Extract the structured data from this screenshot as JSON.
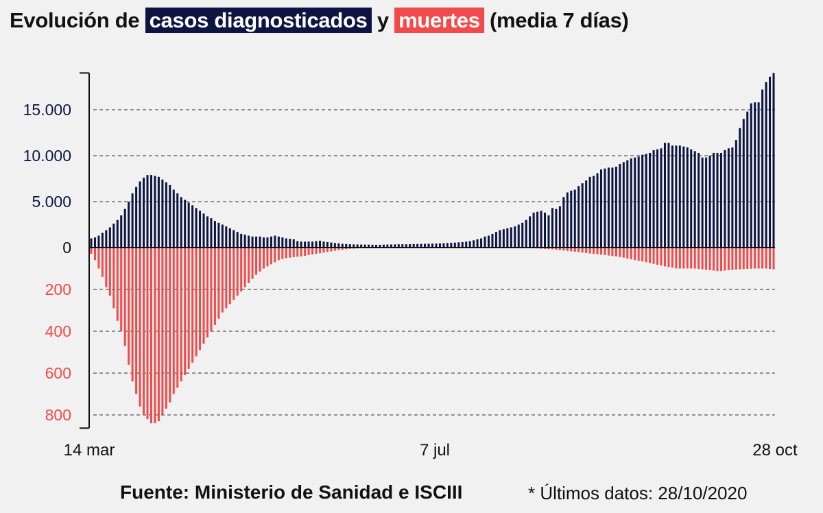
{
  "title": {
    "prefix": "Evolución de",
    "cases_label": "casos diagnosticados",
    "connector": "y",
    "deaths_label": "muertes",
    "suffix": "(media 7 días)"
  },
  "footer": {
    "source": "Fuente: Ministerio de Sanidad e ISCIII",
    "last_data": "* Últimos datos: 28/10/2020"
  },
  "colors": {
    "cases": "#0d1442",
    "deaths": "#f24a4a",
    "background": "#f1f1f1",
    "highlight_text": "#ffffff"
  },
  "chart_data": {
    "type": "bar",
    "title": "Evolución de casos diagnosticados y muertes (media 7 días)",
    "x_tick_labels": [
      "14 mar",
      "7 jul",
      "28 oct"
    ],
    "cases_axis": {
      "ylim": [
        0,
        19000
      ],
      "ticks": [
        0,
        5000,
        10000,
        15000
      ],
      "tick_labels": [
        "0",
        "5.000",
        "10.000",
        "15.000"
      ]
    },
    "deaths_axis": {
      "ylim": [
        0,
        850
      ],
      "ticks": [
        200,
        400,
        600,
        800
      ],
      "tick_labels": [
        "200",
        "400",
        "600",
        "800"
      ]
    },
    "grid": true,
    "series": [
      {
        "name": "casos diagnosticados",
        "values": [
          1000,
          1100,
          1300,
          1600,
          1900,
          2200,
          2600,
          3000,
          3500,
          4200,
          5000,
          5900,
          6600,
          7200,
          7600,
          7900,
          7900,
          7800,
          7700,
          7400,
          7100,
          6800,
          6300,
          5900,
          5500,
          5200,
          4900,
          4600,
          4300,
          4000,
          3700,
          3400,
          3200,
          2900,
          2700,
          2500,
          2300,
          2100,
          1900,
          1700,
          1500,
          1400,
          1300,
          1200,
          1200,
          1200,
          1100,
          1100,
          1200,
          1300,
          1200,
          1100,
          1000,
          950,
          900,
          700,
          650,
          650,
          650,
          650,
          700,
          750,
          650,
          600,
          550,
          500,
          450,
          400,
          380,
          360,
          350,
          340,
          330,
          330,
          320,
          310,
          300,
          310,
          320,
          330,
          340,
          350,
          360,
          360,
          360,
          370,
          380,
          390,
          400,
          410,
          420,
          430,
          440,
          460,
          480,
          500,
          520,
          540,
          570,
          600,
          650,
          700,
          800,
          900,
          1000,
          1200,
          1300,
          1500,
          1700,
          1900,
          2000,
          2100,
          2200,
          2300,
          2500,
          2700,
          3000,
          3400,
          3800,
          3900,
          4000,
          3800,
          3500,
          4300,
          4200,
          4500,
          5500,
          6000,
          6200,
          6300,
          6700,
          7000,
          7300,
          7700,
          7800,
          8100,
          8500,
          8600,
          8700,
          8700,
          8800,
          9100,
          9300,
          9500,
          9700,
          9800,
          9900,
          10100,
          10200,
          10300,
          10600,
          10700,
          10800,
          11400,
          11400,
          11100,
          11100,
          11100,
          11000,
          10900,
          10700,
          10500,
          10300,
          9800,
          9800,
          10000,
          10300,
          10300,
          10300,
          10600,
          10800,
          10900,
          11700,
          13000,
          14000,
          14800,
          15700,
          15800,
          15800,
          17200,
          18000,
          18600,
          19000
        ]
      },
      {
        "name": "muertes",
        "values": [
          30,
          60,
          100,
          140,
          190,
          230,
          290,
          350,
          400,
          470,
          560,
          640,
          700,
          760,
          800,
          820,
          840,
          840,
          830,
          800,
          770,
          740,
          700,
          670,
          640,
          610,
          580,
          550,
          520,
          490,
          460,
          430,
          400,
          370,
          340,
          310,
          290,
          270,
          250,
          230,
          210,
          190,
          170,
          150,
          130,
          115,
          100,
          90,
          80,
          70,
          60,
          55,
          50,
          48,
          46,
          44,
          42,
          40,
          36,
          33,
          30,
          27,
          24,
          21,
          18,
          15,
          12,
          10,
          8,
          6,
          5,
          4,
          3,
          2,
          2,
          1,
          1,
          1,
          1,
          1,
          1,
          1,
          1,
          1,
          1,
          1,
          1,
          1,
          1,
          1,
          1,
          1,
          1,
          1,
          1,
          1,
          1,
          1,
          1,
          1,
          1,
          1,
          1,
          1,
          1,
          1,
          1,
          1,
          1,
          1,
          1,
          1,
          1,
          1,
          1,
          1,
          1,
          2,
          3,
          4,
          5,
          6,
          7,
          8,
          10,
          12,
          14,
          16,
          18,
          20,
          22,
          24,
          26,
          28,
          30,
          32,
          34,
          36,
          38,
          40,
          42,
          45,
          48,
          52,
          56,
          60,
          63,
          66,
          70,
          74,
          78,
          82,
          86,
          90,
          93,
          96,
          100,
          100,
          100,
          100,
          100,
          100,
          102,
          104,
          106,
          108,
          110,
          112,
          112,
          110,
          108,
          106,
          105,
          104,
          103,
          102,
          101,
          100,
          100,
          100,
          100,
          102,
          104,
          106,
          108,
          110,
          112,
          114,
          116,
          118,
          112,
          104
        ]
      }
    ]
  }
}
